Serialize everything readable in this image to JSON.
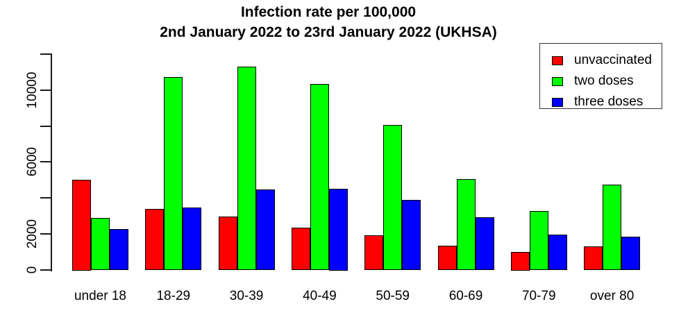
{
  "chart_data": {
    "type": "bar",
    "title": "Infection rate per 100,000",
    "subtitle": "2nd January 2022 to 23rd January 2022 (UKHSA)",
    "categories": [
      "under 18",
      "18-29",
      "30-39",
      "40-49",
      "50-59",
      "60-69",
      "70-79",
      "over 80"
    ],
    "series": [
      {
        "name": "unvaccinated",
        "color": "#ff0000",
        "values": [
          5000,
          3400,
          2970,
          2350,
          1900,
          1320,
          1000,
          1300
        ]
      },
      {
        "name": "two doses",
        "color": "#00ff00",
        "values": [
          2870,
          10740,
          11300,
          10330,
          8040,
          5040,
          3260,
          4740
        ]
      },
      {
        "name": "three doses",
        "color": "#0000ff",
        "values": [
          2260,
          3460,
          4480,
          4500,
          3880,
          2930,
          1940,
          1850
        ]
      }
    ],
    "xlabel": "",
    "ylabel": "",
    "ylim": [
      0,
      12000
    ],
    "y_ticks": [
      {
        "v": 0,
        "label": "0"
      },
      {
        "v": 2000,
        "label": "2000"
      },
      {
        "v": 4000,
        "label": ""
      },
      {
        "v": 6000,
        "label": "6000"
      },
      {
        "v": 8000,
        "label": ""
      },
      {
        "v": 10000,
        "label": "10000"
      },
      {
        "v": 12000,
        "label": ""
      }
    ],
    "grid": false,
    "legend_position": "top-right",
    "bar_border_color": "#000000",
    "axis_color": "#1a1a1a"
  }
}
